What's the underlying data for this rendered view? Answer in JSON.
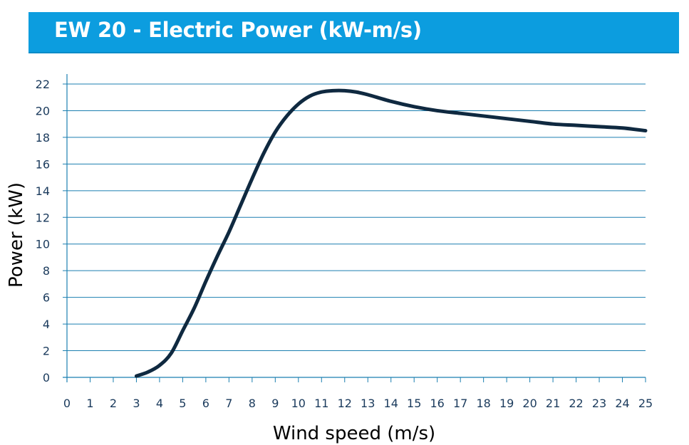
{
  "chart_data": {
    "type": "line",
    "title": "EW 20 - Electric Power (kW-m/s)",
    "xlabel": "Wind speed (m/s)",
    "ylabel": "Power (kW)",
    "xlim": [
      0,
      25
    ],
    "ylim": [
      0,
      22
    ],
    "x_ticks": [
      0,
      1,
      2,
      3,
      4,
      5,
      6,
      7,
      8,
      9,
      10,
      11,
      12,
      13,
      14,
      15,
      16,
      17,
      18,
      19,
      20,
      21,
      22,
      23,
      24,
      25
    ],
    "y_ticks": [
      0,
      2,
      4,
      6,
      8,
      10,
      12,
      14,
      16,
      18,
      20,
      22
    ],
    "grid": "horizontal",
    "legend": "none",
    "series": [
      {
        "x": [
          3,
          3.5,
          4,
          4.5,
          5,
          5.5,
          6,
          6.5,
          7,
          7.5,
          8,
          8.5,
          9,
          9.5,
          10,
          10.5,
          11,
          11.5,
          12,
          12.5,
          13,
          14,
          15,
          16,
          17,
          18,
          19,
          20,
          21,
          22,
          23,
          24,
          25
        ],
        "y": [
          0.1,
          0.4,
          0.9,
          1.8,
          3.5,
          5.2,
          7.2,
          9.1,
          10.9,
          12.9,
          14.9,
          16.8,
          18.4,
          19.6,
          20.5,
          21.1,
          21.4,
          21.5,
          21.5,
          21.4,
          21.2,
          20.7,
          20.3,
          20.0,
          19.8,
          19.6,
          19.4,
          19.2,
          19.0,
          18.9,
          18.8,
          18.7,
          18.5
        ]
      }
    ],
    "colors": {
      "line": "#0f2940",
      "grid": "#1b7fb0",
      "axis": "#1b7fb0",
      "tick_text": "#1a3a5c",
      "banner": "#0c9ddf"
    }
  }
}
